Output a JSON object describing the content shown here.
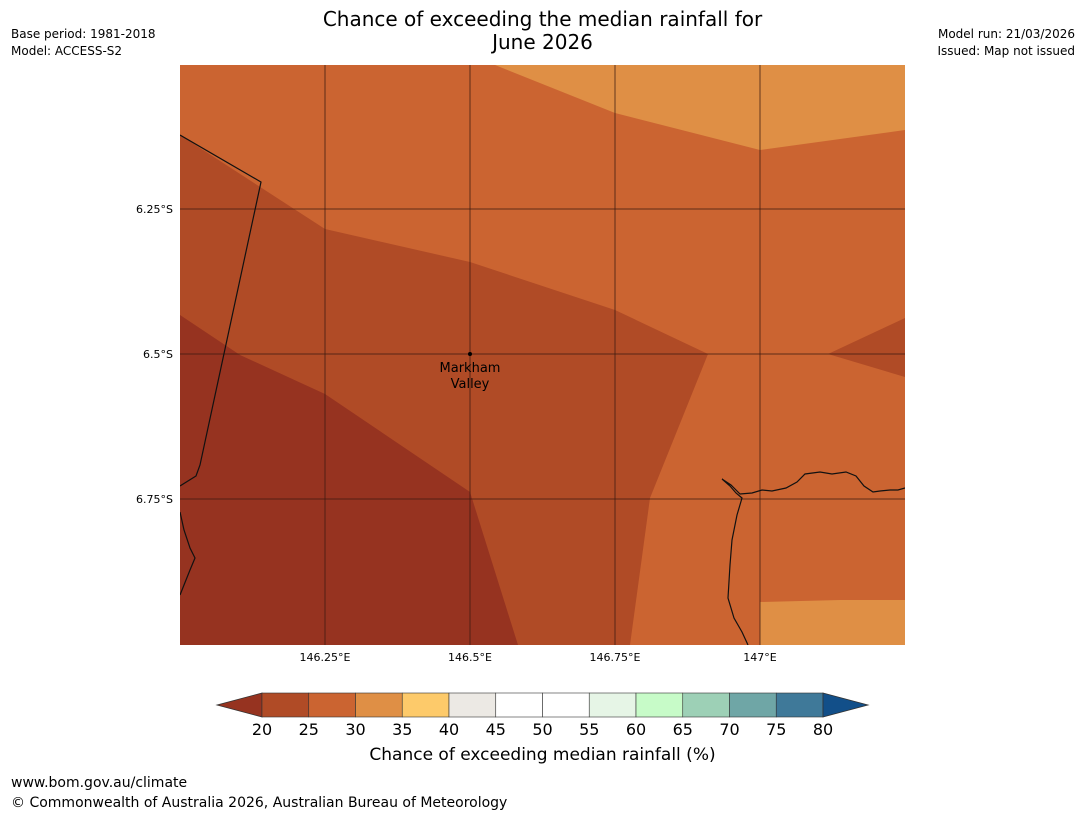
{
  "header": {
    "title_line1": "Chance of exceeding the median rainfall for",
    "title_line2": "June 2026",
    "base_period": "Base period: 1981-2018",
    "model": "Model: ACCESS-S2",
    "model_run": "Model run: 21/03/2026",
    "issued": "Issued: Map not issued"
  },
  "map": {
    "place_label_line1": "Markham",
    "place_label_line2": "Valley",
    "lat_labels": [
      "6.25°S",
      "6.5°S",
      "6.75°S"
    ],
    "lon_labels": [
      "146.25°E",
      "146.5°E",
      "146.75°E",
      "147°E"
    ],
    "colors": {
      "c20_25": "#963320",
      "c25_30": "#b04b26",
      "c30_35": "#cb6431",
      "c35_40": "#df8f45"
    }
  },
  "colorbar": {
    "ticks": [
      "20",
      "25",
      "30",
      "35",
      "40",
      "45",
      "50",
      "55",
      "60",
      "65",
      "70",
      "75",
      "80"
    ],
    "colors": [
      "#b04b26",
      "#cb6431",
      "#df8f45",
      "#fdca6a",
      "#ece9e4",
      "#ffffff",
      "#ffffff",
      "#e6f5e6",
      "#c7fbc8",
      "#9dd0b6",
      "#6fa6a6",
      "#3f7999"
    ],
    "under_color": "#963320",
    "over_color": "#124f89",
    "label": "Chance of exceeding median rainfall (%)"
  },
  "footer": {
    "url": "www.bom.gov.au/climate",
    "copyright": "© Commonwealth of Australia 2026, Australian Bureau of Meteorology"
  }
}
